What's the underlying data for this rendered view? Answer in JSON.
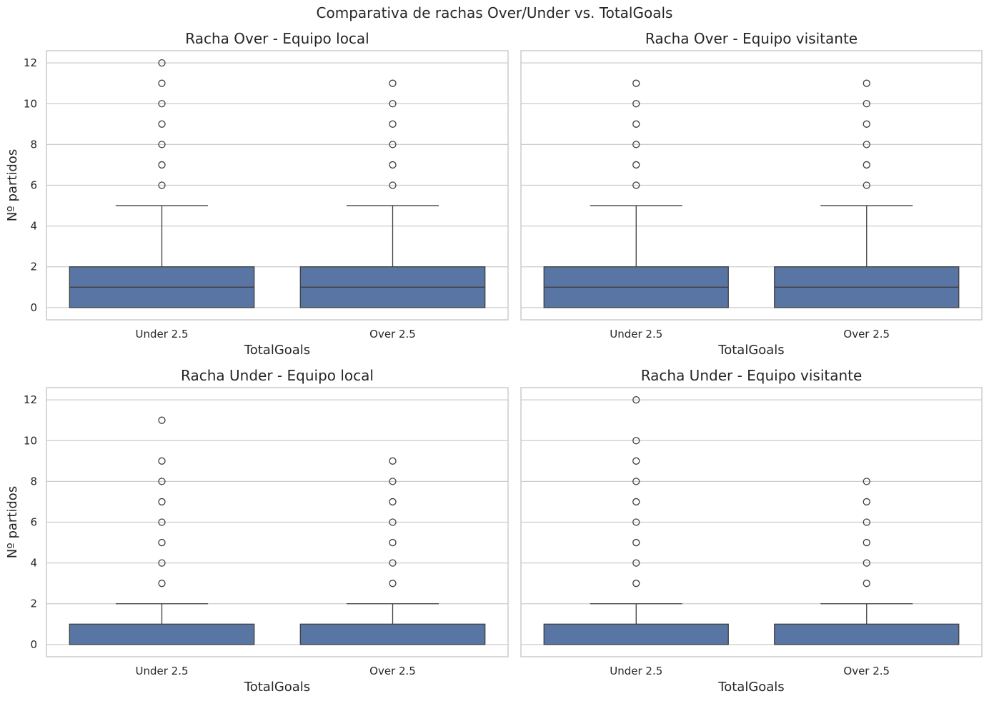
{
  "figure": {
    "suptitle": "Comparativa de rachas Over/Under vs. TotalGoals"
  },
  "colors": {
    "box_fill": "#5875a4",
    "box_edge": "#3f3f3f",
    "grid": "#cccccc",
    "frame": "#cccccc",
    "text": "#262626"
  },
  "chart_data": [
    {
      "type": "box",
      "title": "Racha Over - Equipo local",
      "xlabel": "TotalGoals",
      "ylabel": "Nº partidos",
      "categories": [
        "Under 2.5",
        "Over 2.5"
      ],
      "yticks": [
        0,
        2,
        4,
        6,
        8,
        10,
        12
      ],
      "ylim": [
        -0.6,
        12.6
      ],
      "grid": true,
      "boxes": [
        {
          "category": "Under 2.5",
          "whislo": 0,
          "q1": 0,
          "median": 1,
          "q3": 2,
          "whishi": 5,
          "fliers": [
            6,
            7,
            8,
            9,
            10,
            11,
            12
          ]
        },
        {
          "category": "Over 2.5",
          "whislo": 0,
          "q1": 0,
          "median": 1,
          "q3": 2,
          "whishi": 5,
          "fliers": [
            6,
            7,
            8,
            9,
            10,
            11
          ]
        }
      ]
    },
    {
      "type": "box",
      "title": "Racha Over - Equipo visitante",
      "xlabel": "TotalGoals",
      "ylabel": "",
      "categories": [
        "Under 2.5",
        "Over 2.5"
      ],
      "yticks": [],
      "ylim": [
        -0.6,
        12.6
      ],
      "grid": true,
      "boxes": [
        {
          "category": "Under 2.5",
          "whislo": 0,
          "q1": 0,
          "median": 1,
          "q3": 2,
          "whishi": 5,
          "fliers": [
            6,
            7,
            8,
            9,
            10,
            11
          ]
        },
        {
          "category": "Over 2.5",
          "whislo": 0,
          "q1": 0,
          "median": 1,
          "q3": 2,
          "whishi": 5,
          "fliers": [
            6,
            7,
            8,
            9,
            10,
            11
          ]
        }
      ]
    },
    {
      "type": "box",
      "title": "Racha Under - Equipo local",
      "xlabel": "TotalGoals",
      "ylabel": "Nº partidos",
      "categories": [
        "Under 2.5",
        "Over 2.5"
      ],
      "yticks": [
        0,
        2,
        4,
        6,
        8,
        10,
        12
      ],
      "ylim": [
        -0.6,
        12.6
      ],
      "grid": true,
      "boxes": [
        {
          "category": "Under 2.5",
          "whislo": 0,
          "q1": 0,
          "median": 0,
          "q3": 1,
          "whishi": 2,
          "fliers": [
            3,
            4,
            5,
            6,
            7,
            8,
            9,
            11
          ]
        },
        {
          "category": "Over 2.5",
          "whislo": 0,
          "q1": 0,
          "median": 0,
          "q3": 1,
          "whishi": 2,
          "fliers": [
            3,
            4,
            5,
            6,
            7,
            8,
            9
          ]
        }
      ]
    },
    {
      "type": "box",
      "title": "Racha Under - Equipo visitante",
      "xlabel": "TotalGoals",
      "ylabel": "",
      "categories": [
        "Under 2.5",
        "Over 2.5"
      ],
      "yticks": [],
      "ylim": [
        -0.6,
        12.6
      ],
      "grid": true,
      "boxes": [
        {
          "category": "Under 2.5",
          "whislo": 0,
          "q1": 0,
          "median": 0,
          "q3": 1,
          "whishi": 2,
          "fliers": [
            3,
            4,
            5,
            6,
            7,
            8,
            9,
            10,
            12
          ]
        },
        {
          "category": "Over 2.5",
          "whislo": 0,
          "q1": 0,
          "median": 0,
          "q3": 1,
          "whishi": 2,
          "fliers": [
            3,
            4,
            5,
            6,
            7,
            8
          ]
        }
      ]
    }
  ]
}
